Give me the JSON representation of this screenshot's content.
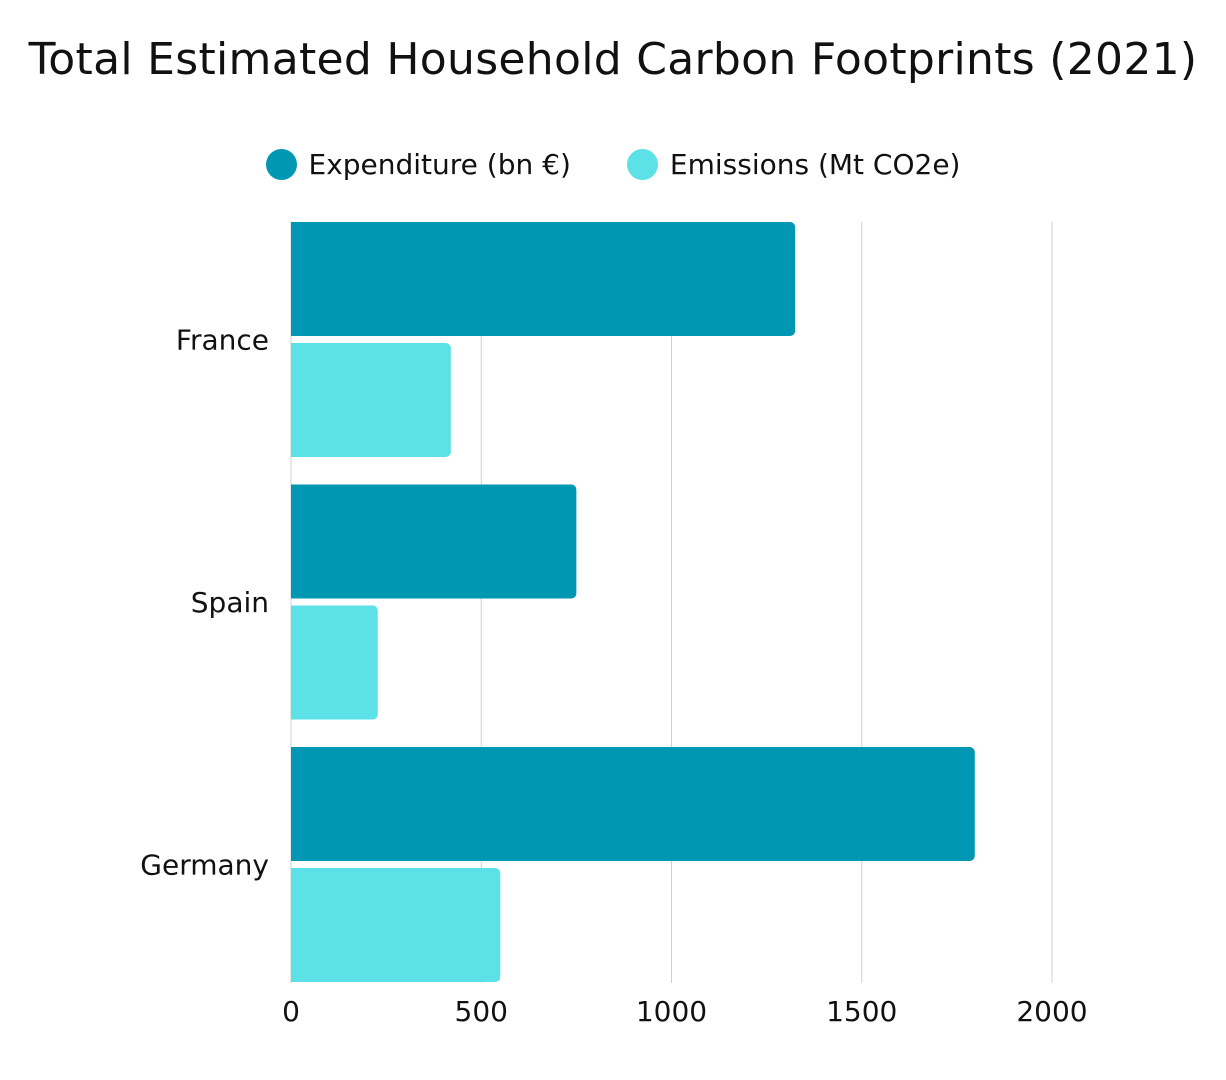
{
  "chart_data": {
    "type": "bar",
    "orientation": "horizontal",
    "title": "Total Estimated Household Carbon Footprints (2021)",
    "categories": [
      "France",
      "Spain",
      "Germany"
    ],
    "series": [
      {
        "name": "Expenditure (bn €)",
        "color": "#0097b2",
        "values": [
          1325,
          750,
          1797
        ]
      },
      {
        "name": "Emissions (Mt CO2e)",
        "color": "#5ce1e6",
        "values": [
          420,
          228,
          550
        ]
      }
    ],
    "xlim": [
      0,
      2000
    ],
    "xticks": [
      "0",
      "500",
      "1000",
      "1500",
      "2000"
    ],
    "grid": true,
    "legend_position": "top-center",
    "xlabel": "",
    "ylabel": ""
  }
}
